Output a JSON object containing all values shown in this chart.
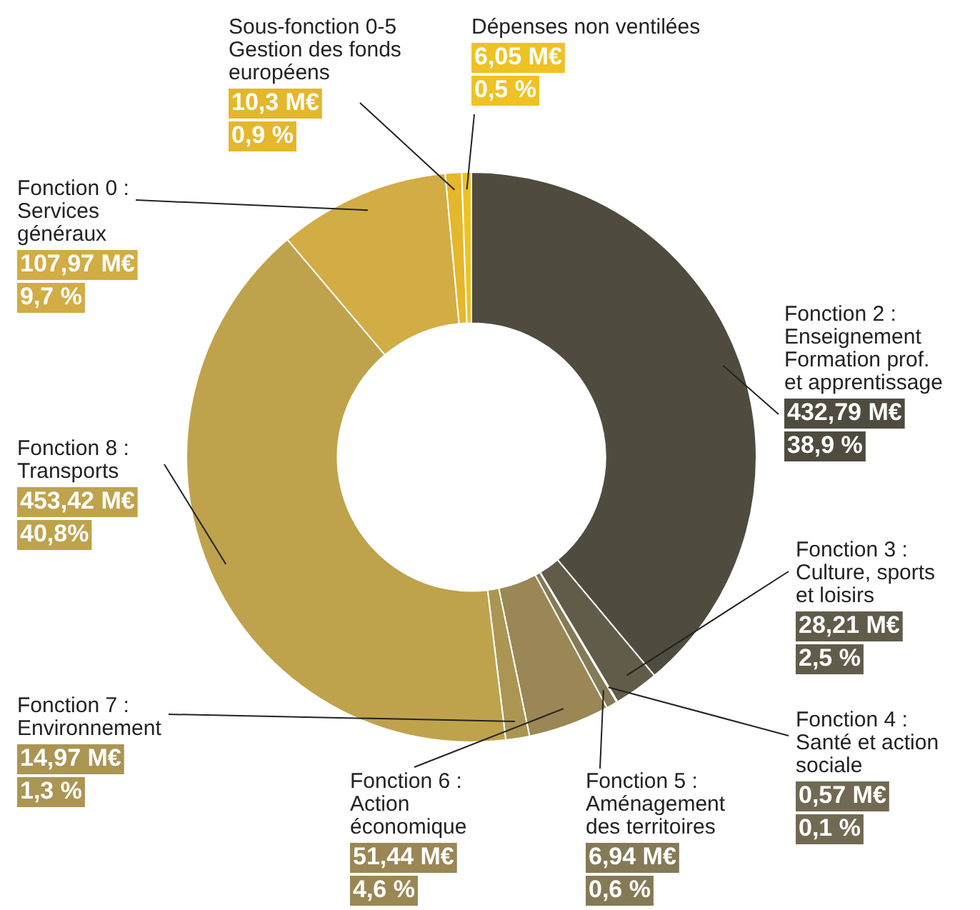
{
  "chart_data": {
    "type": "donut",
    "categories": [
      "Fonction 2 :\nEnseignement\nFormation prof.\net apprentissage",
      "Fonction 3 :\nCulture, sports\net loisirs",
      "Fonction 4 :\nSanté et action\nsociale",
      "Fonction 5 :\nAménagement\ndes territoires",
      "Fonction 6 :\nAction\néconomique",
      "Fonction 7 :\nEnvironnement",
      "Fonction 8 :\nTransports",
      "Fonction 0 :\nServices\ngénéraux",
      "Sous-fonction 0-5\nGestion des fonds\neuropéens",
      "Dépenses non ventilées"
    ],
    "values": [
      432.79,
      28.21,
      0.57,
      6.94,
      51.44,
      14.97,
      453.42,
      107.97,
      10.3,
      6.05
    ],
    "value_labels": [
      "432,79 M€\n38,9 %",
      "28,21 M€\n2,5 %",
      "0,57 M€\n0,1 %",
      "6,94 M€\n0,6 %",
      "51,44 M€\n4,6 %",
      "14,97 M€\n1,3 %",
      "453,42 M€\n40,8%",
      "107,97 M€\n9,7 %",
      "10,3 M€\n0,9 %",
      "6,05 M€\n0,5 %"
    ],
    "colors": [
      "#4f4c3f",
      "#615c4a",
      "#716a53",
      "#857a57",
      "#9a8755",
      "#ab9553",
      "#bfa24c",
      "#d2ac44",
      "#e4b72c",
      "#eec222"
    ],
    "legend": false
  }
}
